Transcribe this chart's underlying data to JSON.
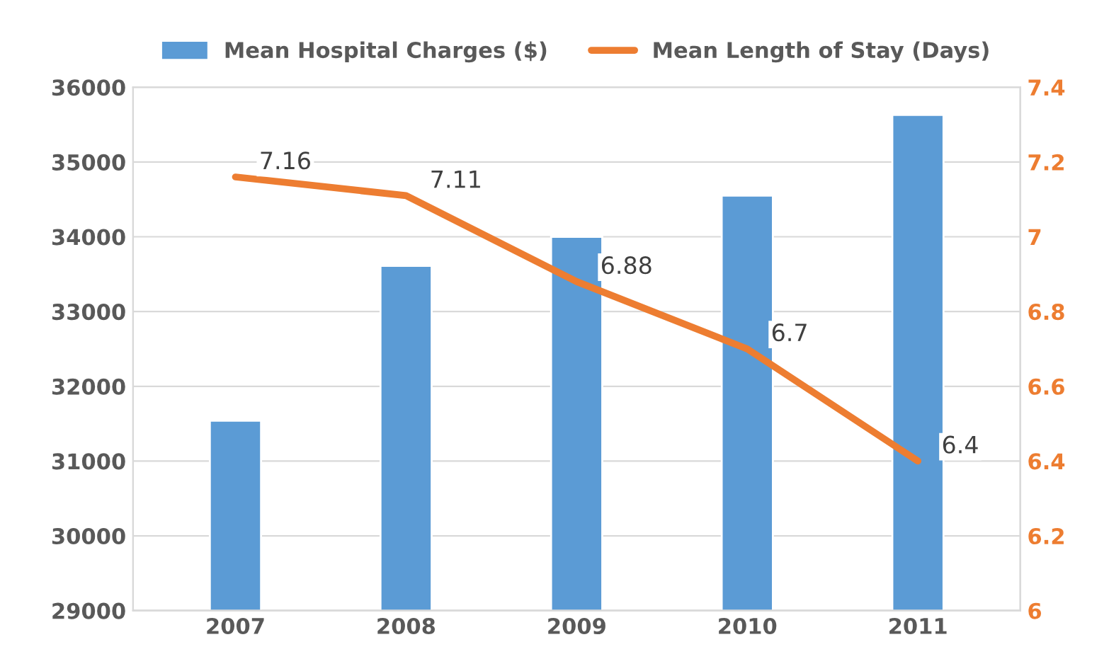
{
  "chart_data": {
    "type": "bar",
    "categories": [
      "2007",
      "2008",
      "2009",
      "2010",
      "2011"
    ],
    "series": [
      {
        "name": "Mean Hospital Charges ($)",
        "color": "#5b9bd5",
        "values": [
          31540,
          33610,
          34000,
          34550,
          35630
        ]
      },
      {
        "name": "Mean Length of Stay (Days)",
        "type": "line",
        "axis": "y2",
        "color": "#ed7d31",
        "values": [
          7.16,
          7.11,
          6.88,
          6.7,
          6.4
        ],
        "value_labels": [
          "7.16",
          "7.11",
          "6.88",
          "6.7",
          "6.4"
        ]
      }
    ],
    "ylim": [
      29000,
      36000
    ],
    "yticks": [
      29000,
      30000,
      31000,
      32000,
      33000,
      34000,
      35000,
      36000
    ],
    "y2lim": [
      6,
      7.4
    ],
    "y2ticks": [
      6,
      6.2,
      6.4,
      6.6,
      6.8,
      7,
      7.2,
      7.4
    ],
    "grid": "y",
    "legend": "top",
    "marker": "none",
    "line_style": "solid"
  }
}
